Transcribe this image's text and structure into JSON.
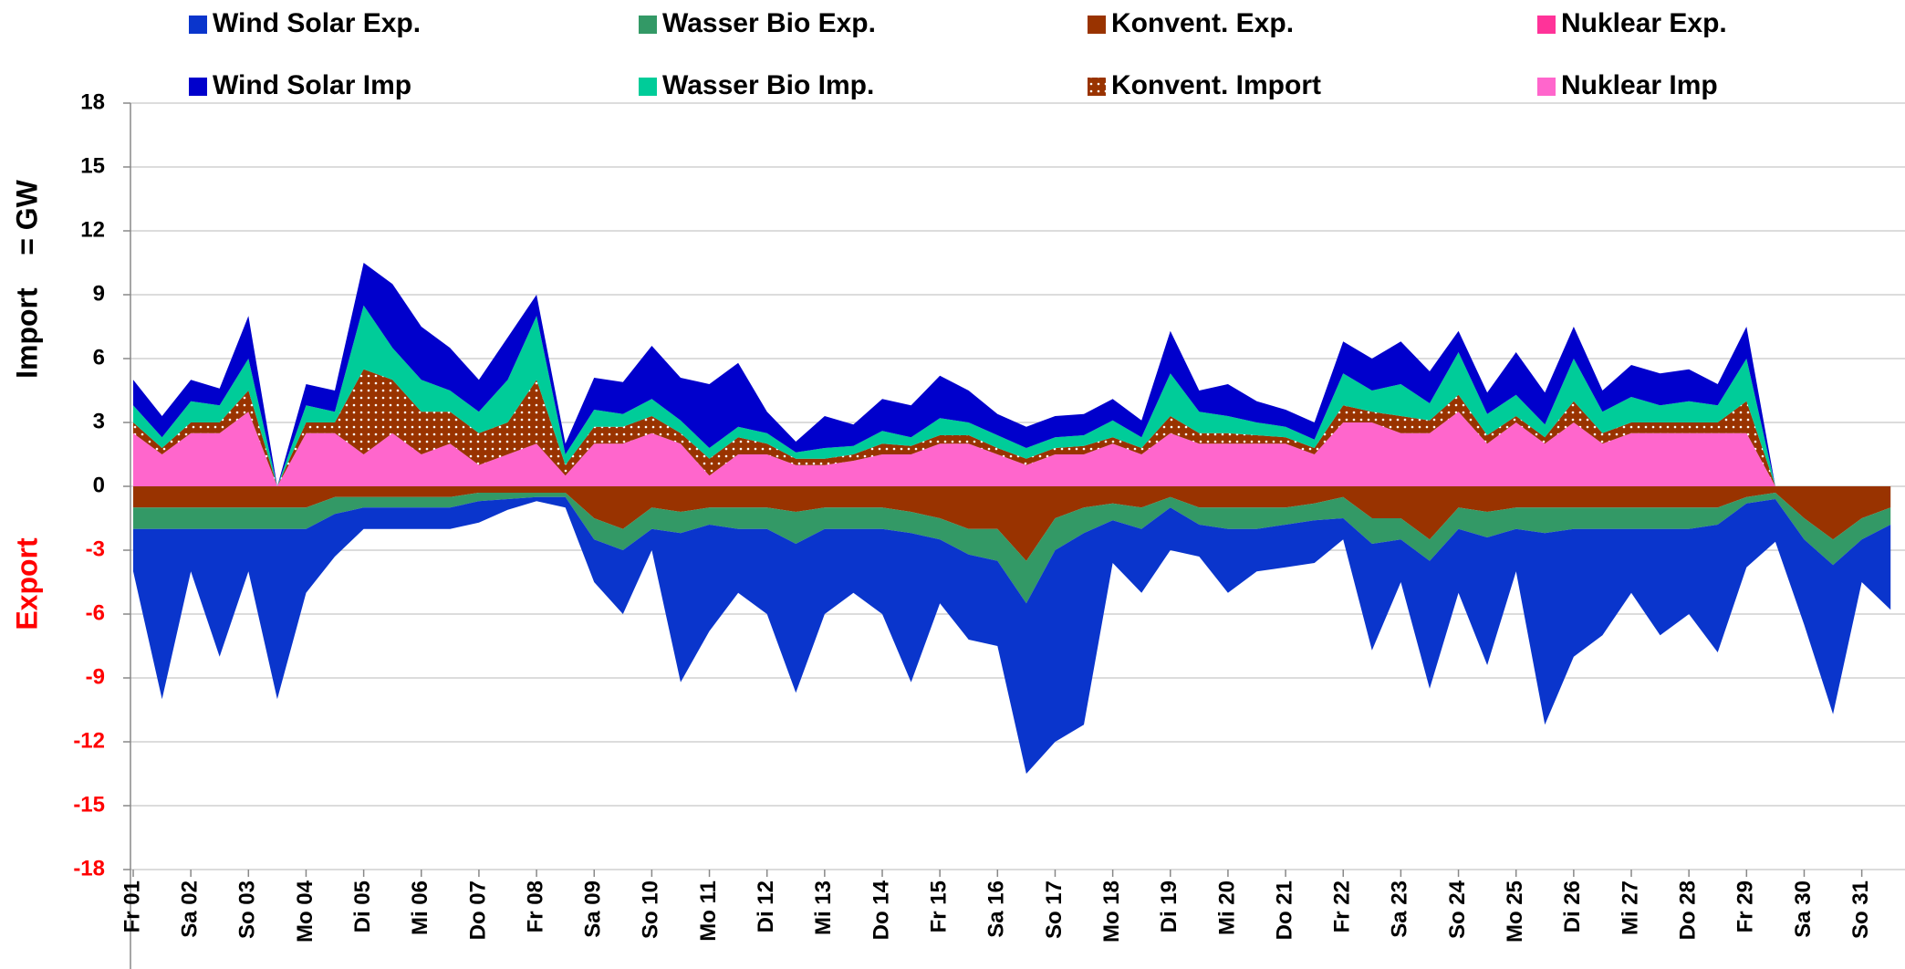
{
  "chart_data": {
    "type": "stacked_area",
    "y_title": "Import    = GW",
    "y_title_negative": "Export",
    "categories": [
      "Fr 01",
      null,
      "Sa 02",
      null,
      "So 03",
      null,
      "Mo 04",
      null,
      "Di 05",
      null,
      "Mi 06",
      null,
      "Do 07",
      null,
      "Fr 08",
      null,
      "Sa 09",
      null,
      "So 10",
      null,
      "Mo 11",
      null,
      "Di 12",
      null,
      "Mi 13",
      null,
      "Do 14",
      null,
      "Fr 15",
      null,
      "Sa 16",
      null,
      "So 17",
      null,
      "Mo 18",
      null,
      "Di 19",
      null,
      "Mi 20",
      null,
      "Do 21",
      null,
      "Fr 22",
      null,
      "Sa 23",
      null,
      "So 24",
      null,
      "Mo 25",
      null,
      "Di 26",
      null,
      "Mi 27",
      null,
      "Do 28",
      null,
      "Fr 29",
      null,
      "Sa 30",
      null,
      "So 31",
      null
    ],
    "ylim": [
      -18,
      18
    ],
    "yticks": [
      18,
      15,
      12,
      9,
      6,
      3,
      0,
      -3,
      -6,
      -9,
      -12,
      -15,
      -18
    ],
    "grid": true,
    "negative_tick_color": "#ff0000",
    "series": [
      {
        "name": "Wind Solar Exp.",
        "color": "#0a35cc",
        "values": [
          -2,
          -8,
          -2,
          -6,
          -2,
          -8,
          -3,
          -2,
          -1,
          -1,
          -1,
          -1,
          -1,
          -0.5,
          -0.2,
          -0.5,
          -2,
          -3,
          -1,
          -7,
          -5,
          -3,
          -4,
          -7,
          -4,
          -3,
          -4,
          -7,
          -3,
          -4,
          -4,
          -8,
          -9,
          -9,
          -2,
          -3,
          -2,
          -1.5,
          -3,
          -2,
          -2,
          -2,
          -1,
          -5,
          -2,
          -6,
          -3,
          -6,
          -2,
          -9,
          -6,
          -5,
          -3,
          -5,
          -4,
          -6,
          -3,
          -2,
          -4,
          -7,
          -2,
          -4
        ]
      },
      {
        "name": "Wasser Bio Exp.",
        "color": "#339966",
        "values": [
          -1,
          -1,
          -1,
          -1,
          -1,
          -1,
          -1,
          -0.8,
          -0.5,
          -0.5,
          -0.5,
          -0.5,
          -0.4,
          -0.3,
          -0.2,
          -0.2,
          -1,
          -1,
          -1,
          -1,
          -0.8,
          -1,
          -1,
          -1.5,
          -1,
          -1,
          -1,
          -1,
          -1,
          -1.2,
          -1.5,
          -2,
          -1.5,
          -1.2,
          -0.8,
          -1,
          -0.5,
          -0.8,
          -1,
          -1,
          -0.8,
          -0.8,
          -1,
          -1.2,
          -1,
          -1,
          -1,
          -1.2,
          -1,
          -1.2,
          -1,
          -1,
          -1,
          -1,
          -1,
          -0.8,
          -0.3,
          -0.3,
          -1,
          -1.2,
          -1,
          -0.8
        ]
      },
      {
        "name": "Konvent. Exp.",
        "color": "#993300",
        "values": [
          -1,
          -1,
          -1,
          -1,
          -1,
          -1,
          -1,
          -0.5,
          -0.5,
          -0.5,
          -0.5,
          -0.5,
          -0.3,
          -0.3,
          -0.3,
          -0.3,
          -1.5,
          -2,
          -1,
          -1.2,
          -1,
          -1,
          -1,
          -1.2,
          -1,
          -1,
          -1,
          -1.2,
          -1.5,
          -2,
          -2,
          -3.5,
          -1.5,
          -1,
          -0.8,
          -1,
          -0.5,
          -1,
          -1,
          -1,
          -1,
          -0.8,
          -0.5,
          -1.5,
          -1.5,
          -2.5,
          -1,
          -1.2,
          -1,
          -1,
          -1,
          -1,
          -1,
          -1,
          -1,
          -1,
          -0.5,
          -0.3,
          -1.5,
          -2.5,
          -1.5,
          -1
        ]
      },
      {
        "name": "Nuklear Exp.",
        "color": "#ff3399",
        "values": [
          0,
          0,
          0,
          0,
          0,
          0,
          0,
          0,
          0,
          0,
          0,
          0,
          0,
          0,
          0,
          0,
          0,
          0,
          0,
          0,
          0,
          0,
          0,
          0,
          0,
          0,
          0,
          0,
          0,
          0,
          0,
          0,
          0,
          0,
          0,
          0,
          0,
          0,
          0,
          0,
          0,
          0,
          0,
          0,
          0,
          0,
          0,
          0,
          0,
          0,
          0,
          0,
          0,
          0,
          0,
          0,
          0,
          0,
          0,
          0,
          0,
          0
        ]
      },
      {
        "name": "Wind Solar Imp",
        "color": "#0000cc",
        "values": [
          1.2,
          1,
          1,
          0.8,
          2,
          0,
          1,
          1,
          2,
          3,
          2.5,
          2,
          1.5,
          2,
          1,
          0.5,
          1.5,
          1.5,
          2.5,
          2,
          3,
          3,
          1,
          0.5,
          1.5,
          1,
          1.5,
          1.5,
          2,
          1.5,
          1,
          1,
          1,
          1,
          1,
          0.8,
          2,
          1,
          1.5,
          1,
          0.8,
          0.8,
          1.5,
          1.5,
          2,
          1.5,
          1,
          1,
          2,
          1.5,
          1.5,
          1,
          1.5,
          1.5,
          1.5,
          1,
          1.5,
          0,
          0,
          0,
          0,
          0
        ]
      },
      {
        "name": "Wasser Bio Imp.",
        "color": "#00cc99",
        "values": [
          0.8,
          0.5,
          1,
          0.8,
          1.5,
          0,
          0.8,
          0.5,
          3,
          1.5,
          1.5,
          1,
          1,
          2,
          3,
          0.5,
          0.8,
          0.6,
          0.8,
          0.6,
          0.5,
          0.5,
          0.5,
          0.3,
          0.5,
          0.4,
          0.6,
          0.4,
          0.8,
          0.6,
          0.6,
          0.5,
          0.5,
          0.5,
          0.8,
          0.5,
          2,
          1,
          0.8,
          0.6,
          0.5,
          0.4,
          1.5,
          1,
          1.5,
          0.8,
          2,
          1,
          1,
          0.6,
          2,
          1,
          1.2,
          0.8,
          1,
          0.8,
          2,
          0,
          0,
          0,
          0,
          0
        ]
      },
      {
        "name": "Konvent. Import",
        "color": "#993300",
        "pattern": "dots",
        "values": [
          0.5,
          0.3,
          0.5,
          0.5,
          1,
          0,
          0.5,
          0.5,
          4,
          2.5,
          2,
          1.5,
          1.5,
          1.5,
          3,
          0.5,
          0.8,
          0.8,
          0.8,
          0.5,
          0.8,
          0.8,
          0.5,
          0.3,
          0.3,
          0.3,
          0.5,
          0.4,
          0.4,
          0.4,
          0.3,
          0.3,
          0.3,
          0.4,
          0.3,
          0.3,
          0.8,
          0.5,
          0.5,
          0.4,
          0.3,
          0.3,
          0.8,
          0.5,
          0.8,
          0.6,
          0.8,
          0.4,
          0.3,
          0.3,
          1,
          0.5,
          0.5,
          0.5,
          0.5,
          0.5,
          1.5,
          0,
          0,
          0,
          0,
          0
        ]
      },
      {
        "name": "Nuklear Imp",
        "color": "#ff66cc",
        "values": [
          2.5,
          1.5,
          2.5,
          2.5,
          3.5,
          0,
          2.5,
          2.5,
          1.5,
          2.5,
          1.5,
          2,
          1,
          1.5,
          2,
          0.5,
          2,
          2,
          2.5,
          2,
          0.5,
          1.5,
          1.5,
          1,
          1,
          1.2,
          1.5,
          1.5,
          2,
          2,
          1.5,
          1,
          1.5,
          1.5,
          2,
          1.5,
          2.5,
          2,
          2,
          2,
          2,
          1.5,
          3,
          3,
          2.5,
          2.5,
          3.5,
          2,
          3,
          2,
          3,
          2,
          2.5,
          2.5,
          2.5,
          2.5,
          2.5,
          0,
          0,
          0,
          0,
          0
        ]
      }
    ]
  }
}
